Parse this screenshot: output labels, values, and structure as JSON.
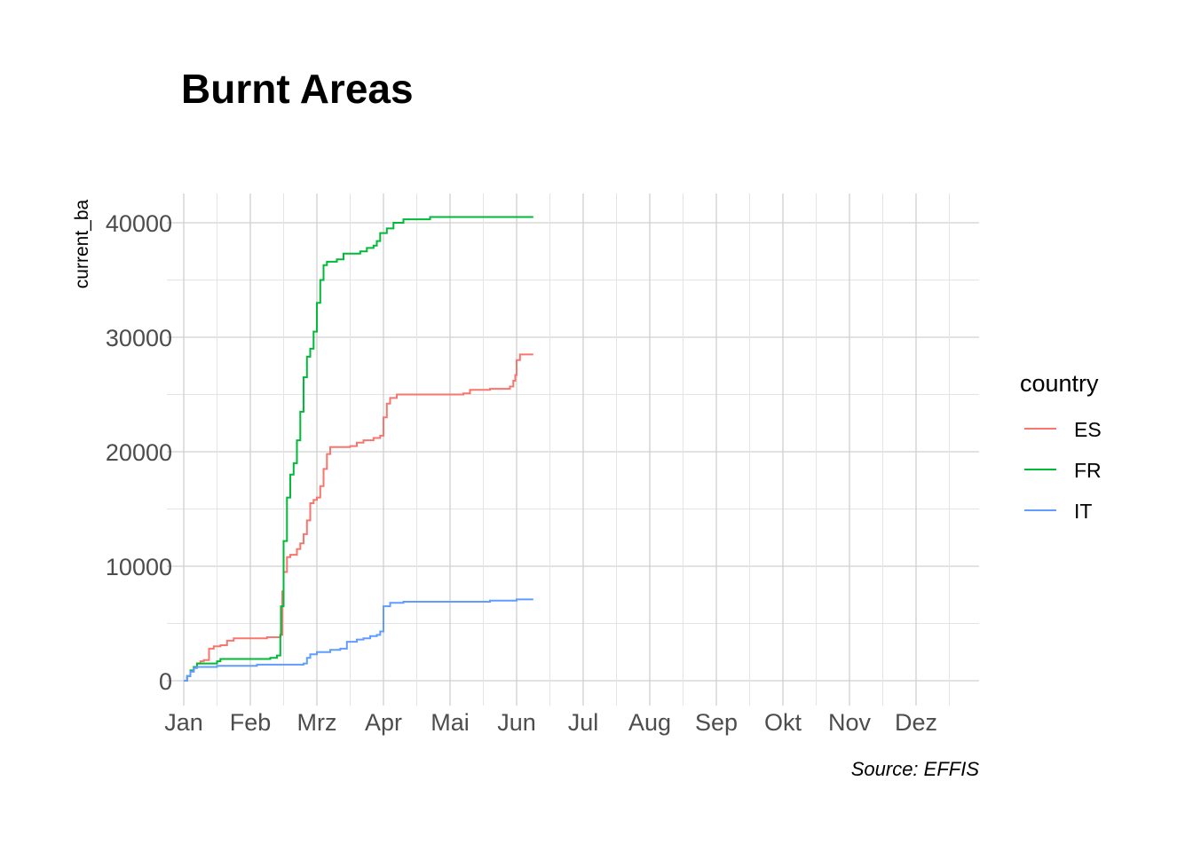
{
  "chart_data": {
    "type": "line",
    "title": "Burnt Areas",
    "xlabel": "",
    "ylabel": "current_ba",
    "caption": "Source: EFFIS",
    "legend_title": "country",
    "legend_position": "right",
    "grid": true,
    "ylim": [
      -2000,
      42500
    ],
    "xlim": [
      0,
      12.5
    ],
    "yticks": [
      0,
      10000,
      20000,
      30000,
      40000
    ],
    "ytick_labels": [
      "0",
      "10000",
      "20000",
      "30000",
      "40000"
    ],
    "xticks": [
      0,
      1,
      2,
      3,
      4,
      5,
      6,
      7,
      8,
      9,
      10,
      11
    ],
    "xtick_labels": [
      "Jan",
      "Feb",
      "Mrz",
      "Apr",
      "Mai",
      "Jun",
      "Jul",
      "Aug",
      "Sep",
      "Okt",
      "Nov",
      "Dez"
    ],
    "x_unit": "months since Jan 1",
    "series": [
      {
        "name": "ES",
        "color": "#F8766D",
        "points": [
          [
            0,
            0
          ],
          [
            0.05,
            400
          ],
          [
            0.1,
            800
          ],
          [
            0.15,
            1200
          ],
          [
            0.2,
            1500
          ],
          [
            0.25,
            1700
          ],
          [
            0.3,
            1800
          ],
          [
            0.38,
            2800
          ],
          [
            0.45,
            3000
          ],
          [
            0.55,
            3100
          ],
          [
            0.65,
            3500
          ],
          [
            0.75,
            3700
          ],
          [
            1.0,
            3700
          ],
          [
            1.25,
            3800
          ],
          [
            1.45,
            4000
          ],
          [
            1.48,
            7800
          ],
          [
            1.5,
            9500
          ],
          [
            1.55,
            10800
          ],
          [
            1.6,
            11000
          ],
          [
            1.7,
            11500
          ],
          [
            1.75,
            12000
          ],
          [
            1.8,
            12800
          ],
          [
            1.85,
            14000
          ],
          [
            1.9,
            15500
          ],
          [
            1.95,
            15800
          ],
          [
            2.0,
            16000
          ],
          [
            2.05,
            17000
          ],
          [
            2.1,
            18500
          ],
          [
            2.15,
            19800
          ],
          [
            2.2,
            20400
          ],
          [
            2.5,
            20500
          ],
          [
            2.6,
            20800
          ],
          [
            2.7,
            21000
          ],
          [
            2.85,
            21200
          ],
          [
            2.95,
            21400
          ],
          [
            3.0,
            23000
          ],
          [
            3.05,
            24200
          ],
          [
            3.1,
            24700
          ],
          [
            3.2,
            25000
          ],
          [
            4.2,
            25100
          ],
          [
            4.3,
            25400
          ],
          [
            4.6,
            25500
          ],
          [
            4.9,
            25700
          ],
          [
            4.95,
            26200
          ],
          [
            4.98,
            26700
          ],
          [
            5.0,
            28000
          ],
          [
            5.05,
            28500
          ],
          [
            5.25,
            28500
          ]
        ]
      },
      {
        "name": "FR",
        "color": "#00BA38",
        "points": [
          [
            0,
            0
          ],
          [
            0.05,
            400
          ],
          [
            0.1,
            900
          ],
          [
            0.15,
            1200
          ],
          [
            0.2,
            1500
          ],
          [
            0.3,
            1500
          ],
          [
            0.5,
            1700
          ],
          [
            0.55,
            1900
          ],
          [
            0.8,
            1900
          ],
          [
            1.3,
            2000
          ],
          [
            1.4,
            2200
          ],
          [
            1.45,
            4000
          ],
          [
            1.46,
            6500
          ],
          [
            1.5,
            12200
          ],
          [
            1.55,
            16000
          ],
          [
            1.6,
            18000
          ],
          [
            1.65,
            19000
          ],
          [
            1.7,
            21000
          ],
          [
            1.75,
            23500
          ],
          [
            1.8,
            26500
          ],
          [
            1.85,
            28300
          ],
          [
            1.9,
            29000
          ],
          [
            1.95,
            30500
          ],
          [
            2.0,
            33000
          ],
          [
            2.05,
            35000
          ],
          [
            2.1,
            36300
          ],
          [
            2.15,
            36600
          ],
          [
            2.3,
            36800
          ],
          [
            2.4,
            37300
          ],
          [
            2.65,
            37500
          ],
          [
            2.75,
            37800
          ],
          [
            2.85,
            38000
          ],
          [
            2.9,
            38400
          ],
          [
            2.95,
            39100
          ],
          [
            3.05,
            39500
          ],
          [
            3.15,
            40000
          ],
          [
            3.3,
            40300
          ],
          [
            3.7,
            40500
          ],
          [
            5.25,
            40500
          ]
        ]
      },
      {
        "name": "IT",
        "color": "#619CFF",
        "points": [
          [
            0,
            0
          ],
          [
            0.05,
            400
          ],
          [
            0.1,
            800
          ],
          [
            0.15,
            1100
          ],
          [
            0.2,
            1200
          ],
          [
            0.5,
            1300
          ],
          [
            1.1,
            1400
          ],
          [
            1.3,
            1400
          ],
          [
            1.8,
            1500
          ],
          [
            1.85,
            2000
          ],
          [
            1.9,
            2300
          ],
          [
            2.0,
            2500
          ],
          [
            2.2,
            2700
          ],
          [
            2.35,
            2800
          ],
          [
            2.45,
            3400
          ],
          [
            2.6,
            3600
          ],
          [
            2.7,
            3700
          ],
          [
            2.8,
            3900
          ],
          [
            2.9,
            4000
          ],
          [
            2.95,
            4300
          ],
          [
            3.0,
            6500
          ],
          [
            3.1,
            6800
          ],
          [
            3.3,
            6900
          ],
          [
            4.5,
            6900
          ],
          [
            4.6,
            7000
          ],
          [
            4.9,
            7000
          ],
          [
            5.0,
            7100
          ],
          [
            5.25,
            7100
          ]
        ]
      }
    ]
  }
}
